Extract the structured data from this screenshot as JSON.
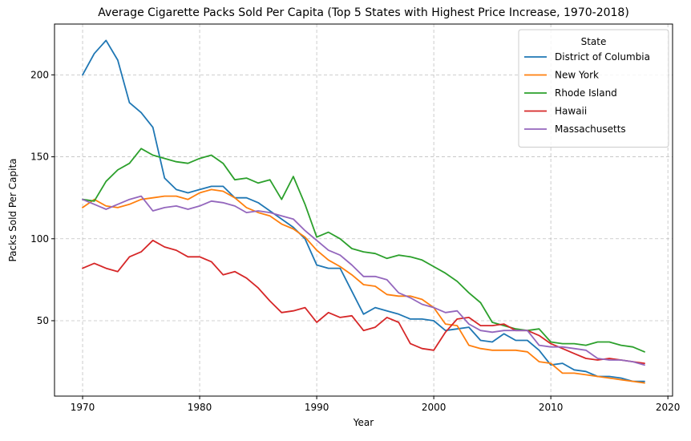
{
  "chart_data": {
    "type": "line",
    "title": "Average Cigarette Packs Sold Per Capita (Top 5 States with Highest Price Increase, 1970-2018)",
    "xlabel": "Year",
    "ylabel": "Packs Sold Per Capita",
    "xlim": [
      1967.6,
      2020.4
    ],
    "ylim": [
      4,
      231
    ],
    "xticks": [
      1970,
      1980,
      1990,
      2000,
      2010,
      2020
    ],
    "yticks": [
      50,
      100,
      150,
      200
    ],
    "grid": true,
    "legend": {
      "title": "State",
      "placement": "top-right"
    },
    "x": [
      1970,
      1971,
      1972,
      1973,
      1974,
      1975,
      1976,
      1977,
      1978,
      1979,
      1980,
      1981,
      1982,
      1983,
      1984,
      1985,
      1986,
      1987,
      1988,
      1989,
      1990,
      1991,
      1992,
      1993,
      1994,
      1995,
      1996,
      1997,
      1998,
      1999,
      2000,
      2001,
      2002,
      2003,
      2004,
      2005,
      2006,
      2007,
      2008,
      2009,
      2010,
      2011,
      2012,
      2013,
      2014,
      2015,
      2016,
      2017,
      2018
    ],
    "series": [
      {
        "name": "District of Columbia",
        "color": "#1f77b4",
        "values": [
          200,
          213,
          221,
          209,
          183,
          177,
          168,
          137,
          130,
          128,
          130,
          132,
          132,
          125,
          125,
          122,
          117,
          112,
          107,
          100,
          84,
          82,
          82,
          68,
          54,
          58,
          56,
          54,
          51,
          51,
          50,
          44,
          45,
          46,
          38,
          37,
          42,
          38,
          38,
          32,
          23,
          24,
          20,
          19,
          16,
          16,
          15,
          13,
          13
        ]
      },
      {
        "name": "New York",
        "color": "#ff7f0e",
        "values": [
          119,
          124,
          120,
          119,
          121,
          124,
          125,
          126,
          126,
          124,
          128,
          130,
          129,
          125,
          119,
          116,
          114,
          109,
          106,
          101,
          93,
          87,
          83,
          78,
          72,
          71,
          66,
          65,
          65,
          63,
          58,
          48,
          47,
          35,
          33,
          32,
          32,
          32,
          31,
          25,
          24,
          18,
          18,
          17,
          16,
          15,
          14,
          13,
          12
        ]
      },
      {
        "name": "Rhode Island",
        "color": "#2ca02c",
        "values": [
          124,
          123,
          135,
          142,
          146,
          155,
          151,
          149,
          147,
          146,
          149,
          151,
          146,
          136,
          137,
          134,
          136,
          124,
          138,
          121,
          101,
          104,
          100,
          94,
          92,
          91,
          88,
          90,
          89,
          87,
          83,
          79,
          74,
          67,
          61,
          49,
          47,
          45,
          44,
          45,
          37,
          36,
          36,
          35,
          37,
          37,
          35,
          34,
          31
        ]
      },
      {
        "name": "Hawaii",
        "color": "#d62728",
        "values": [
          82,
          85,
          82,
          80,
          89,
          92,
          99,
          95,
          93,
          89,
          89,
          86,
          78,
          80,
          76,
          70,
          62,
          55,
          56,
          58,
          49,
          55,
          52,
          53,
          44,
          46,
          52,
          49,
          36,
          33,
          32,
          43,
          51,
          52,
          47,
          47,
          48,
          44,
          44,
          41,
          36,
          33,
          30,
          27,
          26,
          27,
          26,
          25,
          24
        ]
      },
      {
        "name": "Massachusetts",
        "color": "#9467bd",
        "values": [
          124,
          121,
          118,
          121,
          124,
          126,
          117,
          119,
          120,
          118,
          120,
          123,
          122,
          120,
          116,
          117,
          116,
          114,
          112,
          105,
          99,
          93,
          90,
          84,
          77,
          77,
          75,
          67,
          64,
          60,
          58,
          55,
          56,
          48,
          44,
          43,
          44,
          44,
          44,
          35,
          34,
          34,
          33,
          32,
          27,
          26,
          26,
          25,
          23
        ]
      }
    ]
  }
}
